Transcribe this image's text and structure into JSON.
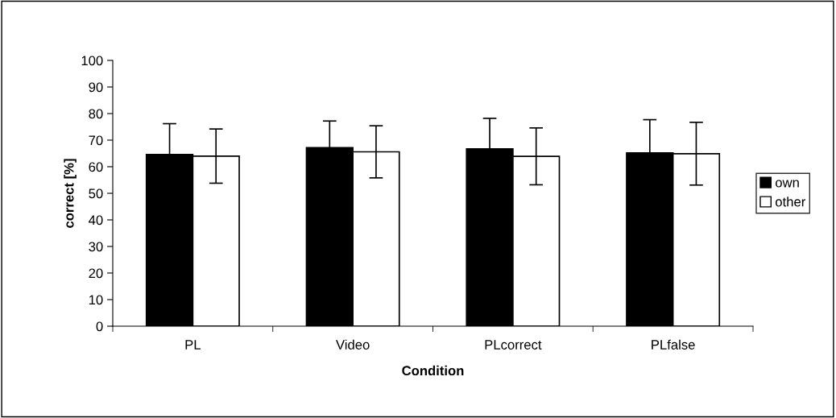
{
  "chart_data": {
    "type": "bar",
    "xlabel": "Condition",
    "ylabel": "correct [%]",
    "categories": [
      "PL",
      "Video",
      "PLcorrect",
      "PLfalse"
    ],
    "series": [
      {
        "name": "own",
        "color": "#000000",
        "values": [
          64.6,
          67.2,
          66.7,
          65.2
        ],
        "errors": [
          11.6,
          10.0,
          11.5,
          12.5
        ]
      },
      {
        "name": "other",
        "color": "#ffffff",
        "values": [
          64.0,
          65.6,
          63.9,
          64.9
        ],
        "errors": [
          10.2,
          9.8,
          10.7,
          11.8
        ]
      }
    ],
    "ylim": [
      0,
      100
    ],
    "yticks": [
      0,
      10,
      20,
      30,
      40,
      50,
      60,
      70,
      80,
      90,
      100
    ],
    "grid": false,
    "legend": "right"
  }
}
